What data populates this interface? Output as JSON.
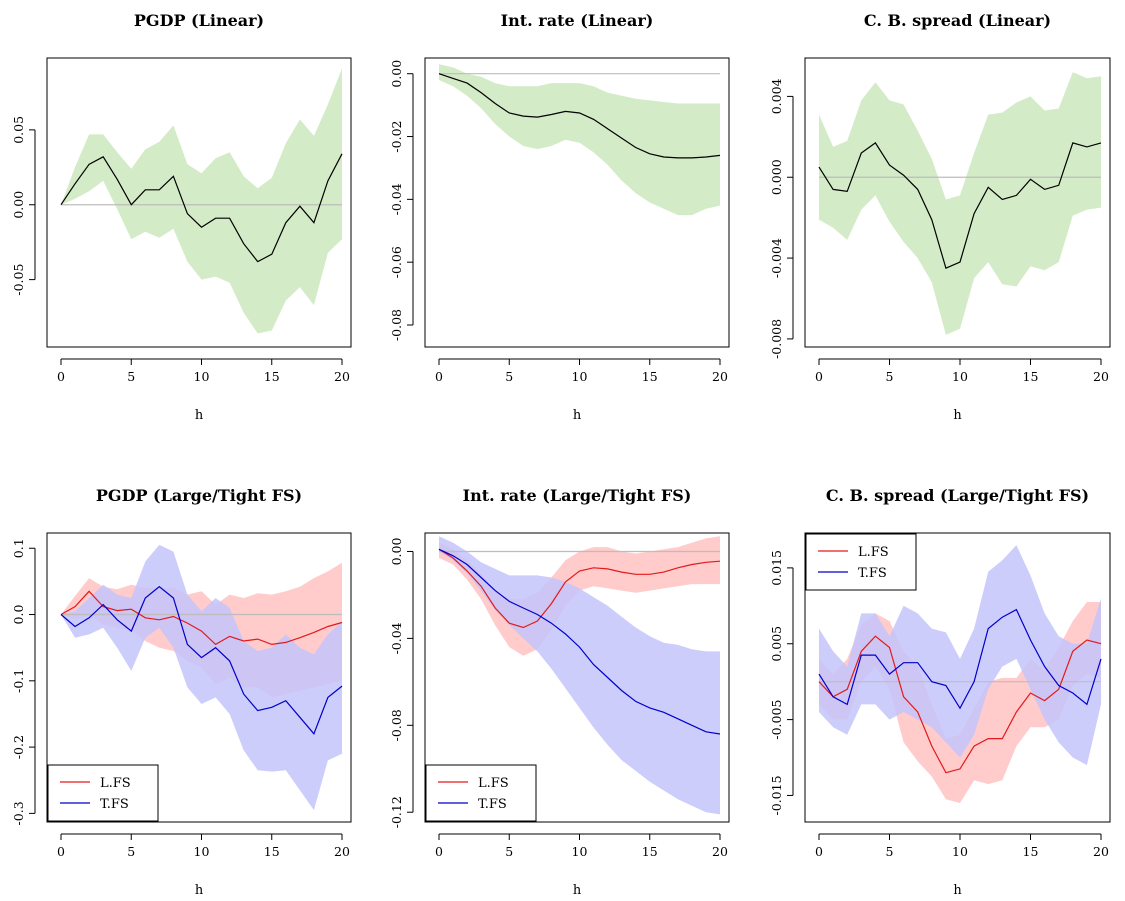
{
  "chart_data": [
    {
      "type": "line",
      "title": "PGDP (Linear)",
      "xlabel": "h",
      "x": [
        0,
        1,
        2,
        3,
        4,
        5,
        6,
        7,
        8,
        9,
        10,
        11,
        12,
        13,
        14,
        15,
        16,
        17,
        18,
        19,
        20
      ],
      "xticks": [
        0,
        5,
        10,
        15,
        20
      ],
      "xlim": [
        0,
        20
      ],
      "ylim": [
        -0.095,
        0.098
      ],
      "yticks": [
        -0.05,
        0.0,
        0.05
      ],
      "ytick_labels": [
        "-0.05",
        "0.00",
        "0.05"
      ],
      "zero_line": true,
      "legend": false,
      "series": [
        {
          "color": "#000000",
          "band_color": "#d3ebc6",
          "values": [
            0.0,
            0.014,
            0.027,
            0.032,
            0.017,
            0.0,
            0.01,
            0.01,
            0.019,
            -0.006,
            -0.015,
            -0.009,
            -0.009,
            -0.026,
            -0.038,
            -0.033,
            -0.012,
            -0.001,
            -0.012,
            0.016,
            0.034
          ],
          "lower": [
            0.0,
            0.004,
            0.009,
            0.016,
            -0.003,
            -0.023,
            -0.018,
            -0.022,
            -0.016,
            -0.038,
            -0.05,
            -0.048,
            -0.052,
            -0.072,
            -0.086,
            -0.084,
            -0.064,
            -0.055,
            -0.067,
            -0.032,
            -0.023
          ],
          "upper": [
            0.0,
            0.025,
            0.047,
            0.047,
            0.035,
            0.024,
            0.037,
            0.042,
            0.053,
            0.027,
            0.021,
            0.031,
            0.035,
            0.019,
            0.011,
            0.018,
            0.041,
            0.057,
            0.046,
            0.067,
            0.091
          ]
        }
      ]
    },
    {
      "type": "line",
      "title": "Int. rate (Linear)",
      "xlabel": "h",
      "x": [
        0,
        1,
        2,
        3,
        4,
        5,
        6,
        7,
        8,
        9,
        10,
        11,
        12,
        13,
        14,
        15,
        16,
        17,
        18,
        19,
        20
      ],
      "xticks": [
        0,
        5,
        10,
        15,
        20
      ],
      "xlim": [
        0,
        20
      ],
      "ylim": [
        -0.087,
        0.005
      ],
      "yticks": [
        -0.08,
        -0.06,
        -0.04,
        -0.02,
        0.0
      ],
      "ytick_labels": [
        "-0.08",
        "-0.06",
        "-0.04",
        "-0.02",
        "0.00"
      ],
      "zero_line": true,
      "legend": false,
      "series": [
        {
          "color": "#000000",
          "band_color": "#d3ebc6",
          "values": [
            0.0,
            -0.0015,
            -0.003,
            -0.006,
            -0.0095,
            -0.0125,
            -0.0135,
            -0.0138,
            -0.013,
            -0.012,
            -0.0125,
            -0.0145,
            -0.0175,
            -0.0205,
            -0.0235,
            -0.0255,
            -0.0265,
            -0.0268,
            -0.0268,
            -0.0265,
            -0.026
          ],
          "lower": [
            -0.002,
            -0.004,
            -0.007,
            -0.011,
            -0.016,
            -0.02,
            -0.023,
            -0.024,
            -0.023,
            -0.021,
            -0.022,
            -0.025,
            -0.029,
            -0.034,
            -0.038,
            -0.041,
            -0.043,
            -0.045,
            -0.045,
            -0.043,
            -0.042
          ],
          "upper": [
            0.003,
            0.002,
            0.0,
            -0.001,
            -0.003,
            -0.004,
            -0.004,
            -0.004,
            -0.003,
            -0.003,
            -0.003,
            -0.004,
            -0.006,
            -0.007,
            -0.008,
            -0.0085,
            -0.009,
            -0.0095,
            -0.0095,
            -0.0095,
            -0.0095
          ]
        }
      ]
    },
    {
      "type": "line",
      "title": "C. B. spread (Linear)",
      "xlabel": "h",
      "x": [
        0,
        1,
        2,
        3,
        4,
        5,
        6,
        7,
        8,
        9,
        10,
        11,
        12,
        13,
        14,
        15,
        16,
        17,
        18,
        19,
        20
      ],
      "xticks": [
        0,
        5,
        10,
        15,
        20
      ],
      "xlim": [
        0,
        20
      ],
      "ylim": [
        -0.0084,
        0.0059
      ],
      "yticks": [
        -0.008,
        -0.004,
        0.0,
        0.004
      ],
      "ytick_labels": [
        "-0.008",
        "-0.004",
        "0.000",
        "0.004"
      ],
      "zero_line": true,
      "legend": false,
      "series": [
        {
          "color": "#000000",
          "band_color": "#d3ebc6",
          "values": [
            0.0005,
            -0.0006,
            -0.0007,
            0.0012,
            0.0017,
            0.0006,
            0.0001,
            -0.0006,
            -0.0021,
            -0.0045,
            -0.0042,
            -0.0018,
            -0.0005,
            -0.0011,
            -0.0009,
            -0.0001,
            -0.0006,
            -0.0004,
            0.0017,
            0.0015,
            0.0017
          ],
          "lower": [
            -0.0021,
            -0.0025,
            -0.0031,
            -0.0016,
            -0.0009,
            -0.0022,
            -0.0032,
            -0.004,
            -0.0052,
            -0.0078,
            -0.0075,
            -0.005,
            -0.0042,
            -0.0053,
            -0.0054,
            -0.0044,
            -0.0046,
            -0.0042,
            -0.0019,
            -0.0016,
            -0.0015
          ],
          "upper": [
            0.0031,
            0.0015,
            0.0018,
            0.0038,
            0.0047,
            0.0038,
            0.0036,
            0.0023,
            0.0009,
            -0.0011,
            -0.0009,
            0.0012,
            0.0031,
            0.0032,
            0.0037,
            0.004,
            0.0033,
            0.0034,
            0.0052,
            0.0049,
            0.005
          ]
        }
      ]
    },
    {
      "type": "line",
      "title": "PGDP (Large/Tight FS)",
      "xlabel": "h",
      "x": [
        0,
        1,
        2,
        3,
        4,
        5,
        6,
        7,
        8,
        9,
        10,
        11,
        12,
        13,
        14,
        15,
        16,
        17,
        18,
        19,
        20
      ],
      "xticks": [
        0,
        5,
        10,
        15,
        20
      ],
      "xlim": [
        0,
        20
      ],
      "ylim": [
        -0.313,
        0.123
      ],
      "yticks": [
        -0.3,
        -0.2,
        -0.1,
        0.0,
        0.1
      ],
      "ytick_labels": [
        "-0.3",
        "-0.2",
        "-0.1",
        "0.0",
        "0.1"
      ],
      "zero_line": true,
      "legend": true,
      "legend_position": "bottom-left",
      "series": [
        {
          "name": "L.FS",
          "color": "#e31a1c",
          "band_color": "#ffc2c2",
          "values": [
            0.0,
            0.012,
            0.035,
            0.012,
            0.006,
            0.008,
            -0.005,
            -0.008,
            -0.003,
            -0.013,
            -0.025,
            -0.045,
            -0.033,
            -0.04,
            -0.037,
            -0.045,
            -0.042,
            -0.035,
            -0.027,
            -0.018,
            -0.012
          ],
          "lower": [
            0.0,
            -0.008,
            -0.002,
            -0.015,
            -0.02,
            -0.024,
            -0.04,
            -0.05,
            -0.055,
            -0.07,
            -0.08,
            -0.105,
            -0.095,
            -0.11,
            -0.11,
            -0.125,
            -0.12,
            -0.115,
            -0.11,
            -0.105,
            -0.1
          ],
          "upper": [
            0.0,
            0.028,
            0.055,
            0.042,
            0.038,
            0.045,
            0.04,
            0.04,
            0.04,
            0.03,
            0.035,
            0.015,
            0.03,
            0.025,
            0.032,
            0.03,
            0.035,
            0.042,
            0.055,
            0.065,
            0.078
          ]
        },
        {
          "name": "T.FS",
          "color": "#0000cc",
          "band_color": "#c4c4fb",
          "values": [
            0.0,
            -0.018,
            -0.005,
            0.015,
            -0.008,
            -0.025,
            0.025,
            0.042,
            0.025,
            -0.045,
            -0.065,
            -0.05,
            -0.07,
            -0.12,
            -0.145,
            -0.14,
            -0.13,
            -0.155,
            -0.18,
            -0.125,
            -0.108
          ],
          "lower": [
            0.0,
            -0.035,
            -0.03,
            -0.02,
            -0.05,
            -0.085,
            -0.035,
            -0.02,
            -0.05,
            -0.11,
            -0.135,
            -0.125,
            -0.15,
            -0.205,
            -0.235,
            -0.237,
            -0.235,
            -0.265,
            -0.295,
            -0.22,
            -0.21
          ],
          "upper": [
            0.0,
            0.005,
            0.025,
            0.045,
            0.03,
            0.025,
            0.08,
            0.105,
            0.095,
            0.03,
            0.005,
            0.025,
            0.01,
            -0.04,
            -0.055,
            -0.05,
            -0.03,
            -0.05,
            -0.06,
            -0.03,
            -0.01
          ]
        }
      ]
    },
    {
      "type": "line",
      "title": "Int. rate (Large/Tight FS)",
      "xlabel": "h",
      "x": [
        0,
        1,
        2,
        3,
        4,
        5,
        6,
        7,
        8,
        9,
        10,
        11,
        12,
        13,
        14,
        15,
        16,
        17,
        18,
        19,
        20
      ],
      "xticks": [
        0,
        5,
        10,
        15,
        20
      ],
      "xlim": [
        0,
        20
      ],
      "ylim": [
        -0.1245,
        0.0085
      ],
      "yticks": [
        -0.12,
        -0.08,
        -0.04,
        0.0
      ],
      "ytick_labels": [
        "-0.12",
        "-0.08",
        "-0.04",
        "0.00"
      ],
      "zero_line": true,
      "legend": true,
      "legend_position": "bottom-left",
      "series": [
        {
          "name": "L.FS",
          "color": "#e31a1c",
          "band_color": "#ffc2c2",
          "values": [
            0.001,
            -0.003,
            -0.009,
            -0.016,
            -0.026,
            -0.033,
            -0.035,
            -0.032,
            -0.024,
            -0.014,
            -0.009,
            -0.0075,
            -0.008,
            -0.0095,
            -0.0105,
            -0.0105,
            -0.0095,
            -0.0075,
            -0.006,
            -0.005,
            -0.0045
          ],
          "lower": [
            -0.003,
            -0.006,
            -0.013,
            -0.022,
            -0.034,
            -0.044,
            -0.048,
            -0.045,
            -0.036,
            -0.025,
            -0.018,
            -0.016,
            -0.017,
            -0.018,
            -0.019,
            -0.018,
            -0.017,
            -0.016,
            -0.015,
            -0.015,
            -0.015
          ],
          "upper": [
            0.004,
            0.001,
            -0.004,
            -0.01,
            -0.018,
            -0.022,
            -0.022,
            -0.019,
            -0.012,
            -0.004,
            0.0,
            0.002,
            0.002,
            0.0,
            -0.001,
            0.0,
            0.001,
            0.002,
            0.004,
            0.006,
            0.007
          ]
        },
        {
          "name": "T.FS",
          "color": "#0000cc",
          "band_color": "#c4c4fb",
          "values": [
            0.001,
            -0.002,
            -0.006,
            -0.012,
            -0.018,
            -0.023,
            -0.026,
            -0.029,
            -0.033,
            -0.038,
            -0.044,
            -0.052,
            -0.058,
            -0.064,
            -0.069,
            -0.072,
            -0.074,
            -0.077,
            -0.08,
            -0.083,
            -0.084
          ],
          "lower": [
            0.0,
            -0.004,
            -0.01,
            -0.018,
            -0.027,
            -0.034,
            -0.04,
            -0.046,
            -0.054,
            -0.063,
            -0.072,
            -0.081,
            -0.089,
            -0.096,
            -0.101,
            -0.106,
            -0.11,
            -0.114,
            -0.117,
            -0.12,
            -0.121
          ],
          "upper": [
            0.007,
            0.004,
            0.0,
            -0.005,
            -0.008,
            -0.011,
            -0.011,
            -0.011,
            -0.012,
            -0.014,
            -0.017,
            -0.021,
            -0.025,
            -0.03,
            -0.035,
            -0.039,
            -0.042,
            -0.043,
            -0.045,
            -0.046,
            -0.046
          ]
        }
      ]
    },
    {
      "type": "line",
      "title": "C. B. spread (Large/Tight FS)",
      "xlabel": "h",
      "x": [
        0,
        1,
        2,
        3,
        4,
        5,
        6,
        7,
        8,
        9,
        10,
        11,
        12,
        13,
        14,
        15,
        16,
        17,
        18,
        19,
        20
      ],
      "xticks": [
        0,
        5,
        10,
        15,
        20
      ],
      "xlim": [
        0,
        20
      ],
      "ylim": [
        -0.0185,
        0.0196
      ],
      "yticks": [
        -0.015,
        -0.005,
        0.005,
        0.015
      ],
      "ytick_labels": [
        "-0.015",
        "-0.005",
        "0.005",
        "0.015"
      ],
      "zero_line": true,
      "legend": true,
      "legend_position": "top-left",
      "series": [
        {
          "name": "L.FS",
          "color": "#e31a1c",
          "band_color": "#ffc2c2",
          "values": [
            0.0,
            -0.002,
            -0.001,
            0.004,
            0.006,
            0.0045,
            -0.002,
            -0.004,
            -0.0085,
            -0.012,
            -0.0115,
            -0.0085,
            -0.0075,
            -0.0075,
            -0.004,
            -0.0015,
            -0.0025,
            -0.001,
            0.004,
            0.0055,
            0.005
          ],
          "lower": [
            -0.003,
            -0.005,
            -0.005,
            0.0,
            0.002,
            -0.001,
            -0.008,
            -0.0105,
            -0.0125,
            -0.0155,
            -0.016,
            -0.013,
            -0.0135,
            -0.013,
            -0.0085,
            -0.006,
            -0.006,
            -0.005,
            -0.0005,
            0.001,
            0.0005
          ],
          "upper": [
            0.003,
            0.001,
            0.003,
            0.0075,
            0.009,
            0.008,
            0.004,
            0.002,
            -0.003,
            -0.0075,
            -0.007,
            -0.0035,
            0.0,
            0.0005,
            0.0005,
            0.003,
            0.0015,
            0.0045,
            0.008,
            0.0105,
            0.0105
          ]
        },
        {
          "name": "T.FS",
          "color": "#0000cc",
          "band_color": "#c4c4fb",
          "values": [
            0.001,
            -0.002,
            -0.003,
            0.0035,
            0.0035,
            0.001,
            0.0025,
            0.0025,
            0.0,
            -0.0005,
            -0.0035,
            0.0,
            0.007,
            0.0085,
            0.0095,
            0.0055,
            0.002,
            -0.0005,
            -0.0015,
            -0.003,
            0.003
          ],
          "lower": [
            -0.004,
            -0.006,
            -0.007,
            -0.003,
            -0.003,
            -0.005,
            -0.004,
            -0.005,
            -0.006,
            -0.008,
            -0.01,
            -0.007,
            -0.001,
            0.002,
            0.003,
            -0.001,
            -0.005,
            -0.008,
            -0.01,
            -0.011,
            -0.003
          ],
          "upper": [
            0.007,
            0.004,
            0.002,
            0.009,
            0.009,
            0.006,
            0.01,
            0.009,
            0.007,
            0.0065,
            0.003,
            0.007,
            0.0145,
            0.016,
            0.018,
            0.014,
            0.009,
            0.006,
            0.005,
            0.005,
            0.011
          ]
        }
      ]
    }
  ]
}
